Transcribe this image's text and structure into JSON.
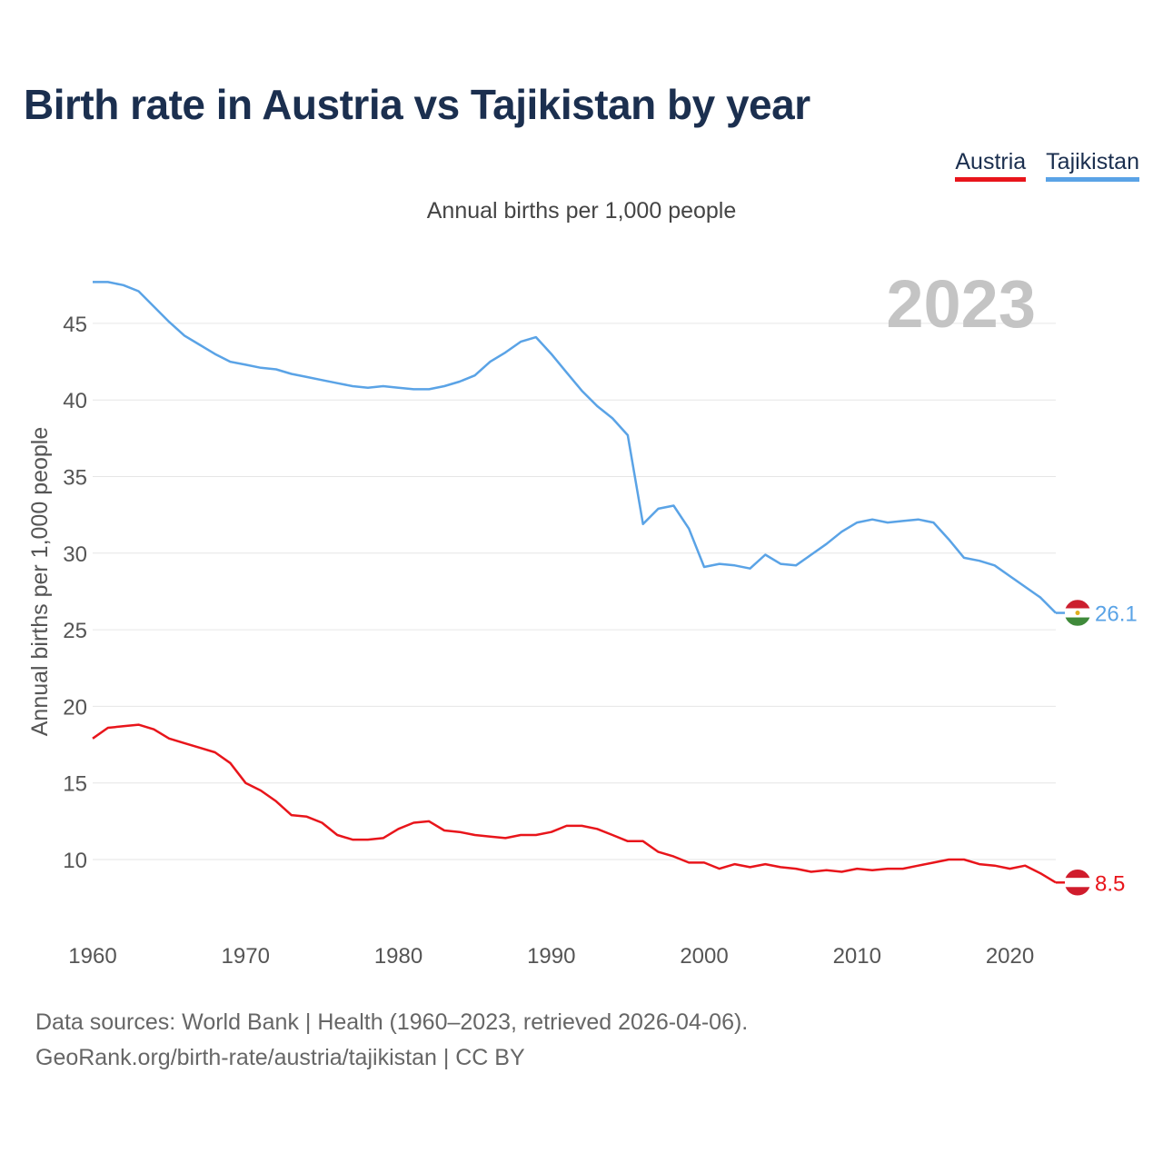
{
  "title": "Birth rate in Austria vs Tajikistan by year",
  "subtitle": "Annual births per 1,000 people",
  "legend": [
    {
      "label": "Austria",
      "color": "#e8151b"
    },
    {
      "label": "Tajikistan",
      "color": "#5aa3e6"
    }
  ],
  "year_label": "2023",
  "source_line1": "Data sources: World Bank | Health (1960–2023, retrieved 2026-04-06).",
  "source_line2": "GeoRank.org/birth-rate/austria/tajikistan | CC BY",
  "chart_data": {
    "type": "line",
    "title": "Birth rate in Austria vs Tajikistan by year",
    "xlabel": "",
    "ylabel": "Annual births per 1,000 people",
    "xlim": [
      1960,
      2023
    ],
    "ylim": [
      5,
      48
    ],
    "x_ticks": [
      1960,
      1970,
      1980,
      1990,
      2000,
      2010,
      2020
    ],
    "y_ticks": [
      10,
      15,
      20,
      25,
      30,
      35,
      40,
      45
    ],
    "grid": true,
    "x": [
      1960,
      1961,
      1962,
      1963,
      1964,
      1965,
      1966,
      1967,
      1968,
      1969,
      1970,
      1971,
      1972,
      1973,
      1974,
      1975,
      1976,
      1977,
      1978,
      1979,
      1980,
      1981,
      1982,
      1983,
      1984,
      1985,
      1986,
      1987,
      1988,
      1989,
      1990,
      1991,
      1992,
      1993,
      1994,
      1995,
      1996,
      1997,
      1998,
      1999,
      2000,
      2001,
      2002,
      2003,
      2004,
      2005,
      2006,
      2007,
      2008,
      2009,
      2010,
      2011,
      2012,
      2013,
      2014,
      2015,
      2016,
      2017,
      2018,
      2019,
      2020,
      2021,
      2022,
      2023
    ],
    "series": [
      {
        "name": "Austria",
        "color": "#e8151b",
        "end_label": "8.5",
        "values": [
          17.9,
          18.6,
          18.7,
          18.8,
          18.5,
          17.9,
          17.6,
          17.3,
          17.0,
          16.3,
          15.0,
          14.5,
          13.8,
          12.9,
          12.8,
          12.4,
          11.6,
          11.3,
          11.3,
          11.4,
          12.0,
          12.4,
          12.5,
          11.9,
          11.8,
          11.6,
          11.5,
          11.4,
          11.6,
          11.6,
          11.8,
          12.2,
          12.2,
          12.0,
          11.6,
          11.2,
          11.2,
          10.5,
          10.2,
          9.8,
          9.8,
          9.4,
          9.7,
          9.5,
          9.7,
          9.5,
          9.4,
          9.2,
          9.3,
          9.2,
          9.4,
          9.3,
          9.4,
          9.4,
          9.6,
          9.8,
          10.0,
          10.0,
          9.7,
          9.6,
          9.4,
          9.6,
          9.1,
          8.5
        ]
      },
      {
        "name": "Tajikistan",
        "color": "#5aa3e6",
        "end_label": "26.1",
        "values": [
          47.7,
          47.7,
          47.5,
          47.1,
          46.1,
          45.1,
          44.2,
          43.6,
          43.0,
          42.5,
          42.3,
          42.1,
          42.0,
          41.7,
          41.5,
          41.3,
          41.1,
          40.9,
          40.8,
          40.9,
          40.8,
          40.7,
          40.7,
          40.9,
          41.2,
          41.6,
          42.5,
          43.1,
          43.8,
          44.1,
          43.0,
          41.8,
          40.6,
          39.6,
          38.8,
          37.7,
          31.9,
          32.9,
          33.1,
          31.6,
          29.1,
          29.3,
          29.2,
          29.0,
          29.9,
          29.3,
          29.2,
          29.9,
          30.6,
          31.4,
          32.0,
          32.2,
          32.0,
          32.1,
          32.2,
          32.0,
          30.9,
          29.7,
          29.5,
          29.2,
          28.5,
          27.8,
          27.1,
          26.1
        ]
      }
    ]
  }
}
